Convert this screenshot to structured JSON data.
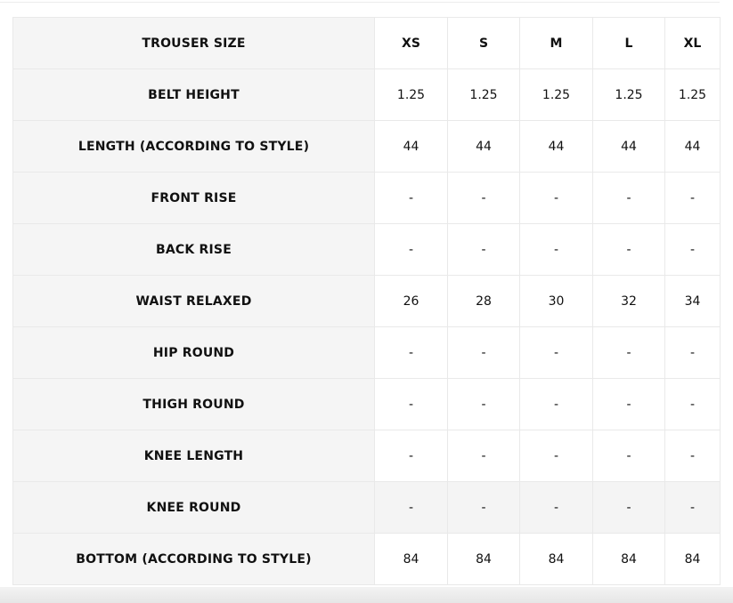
{
  "table": {
    "header_label": "TROUSER SIZE",
    "sizes": [
      "XS",
      "S",
      "M",
      "L",
      "XL"
    ],
    "rows": [
      {
        "label": "BELT HEIGHT",
        "values": [
          "1.25",
          "1.25",
          "1.25",
          "1.25",
          "1.25"
        ]
      },
      {
        "label": "LENGTH (ACCORDING TO STYLE)",
        "values": [
          "44",
          "44",
          "44",
          "44",
          "44"
        ]
      },
      {
        "label": "FRONT RISE",
        "values": [
          "-",
          "-",
          "-",
          "-",
          "-"
        ]
      },
      {
        "label": "BACK RISE",
        "values": [
          "-",
          "-",
          "-",
          "-",
          "-"
        ]
      },
      {
        "label": "WAIST RELAXED",
        "values": [
          "26",
          "28",
          "30",
          "32",
          "34"
        ]
      },
      {
        "label": "HIP ROUND",
        "values": [
          "-",
          "-",
          "-",
          "-",
          "-"
        ]
      },
      {
        "label": "THIGH ROUND",
        "values": [
          "-",
          "-",
          "-",
          "-",
          "-"
        ]
      },
      {
        "label": "KNEE LENGTH",
        "values": [
          "-",
          "-",
          "-",
          "-",
          "-"
        ]
      },
      {
        "label": "KNEE ROUND",
        "values": [
          "-",
          "-",
          "-",
          "-",
          "-"
        ]
      },
      {
        "label": "BOTTOM (ACCORDING TO STYLE)",
        "values": [
          "84",
          "84",
          "84",
          "84",
          "84"
        ]
      }
    ]
  }
}
